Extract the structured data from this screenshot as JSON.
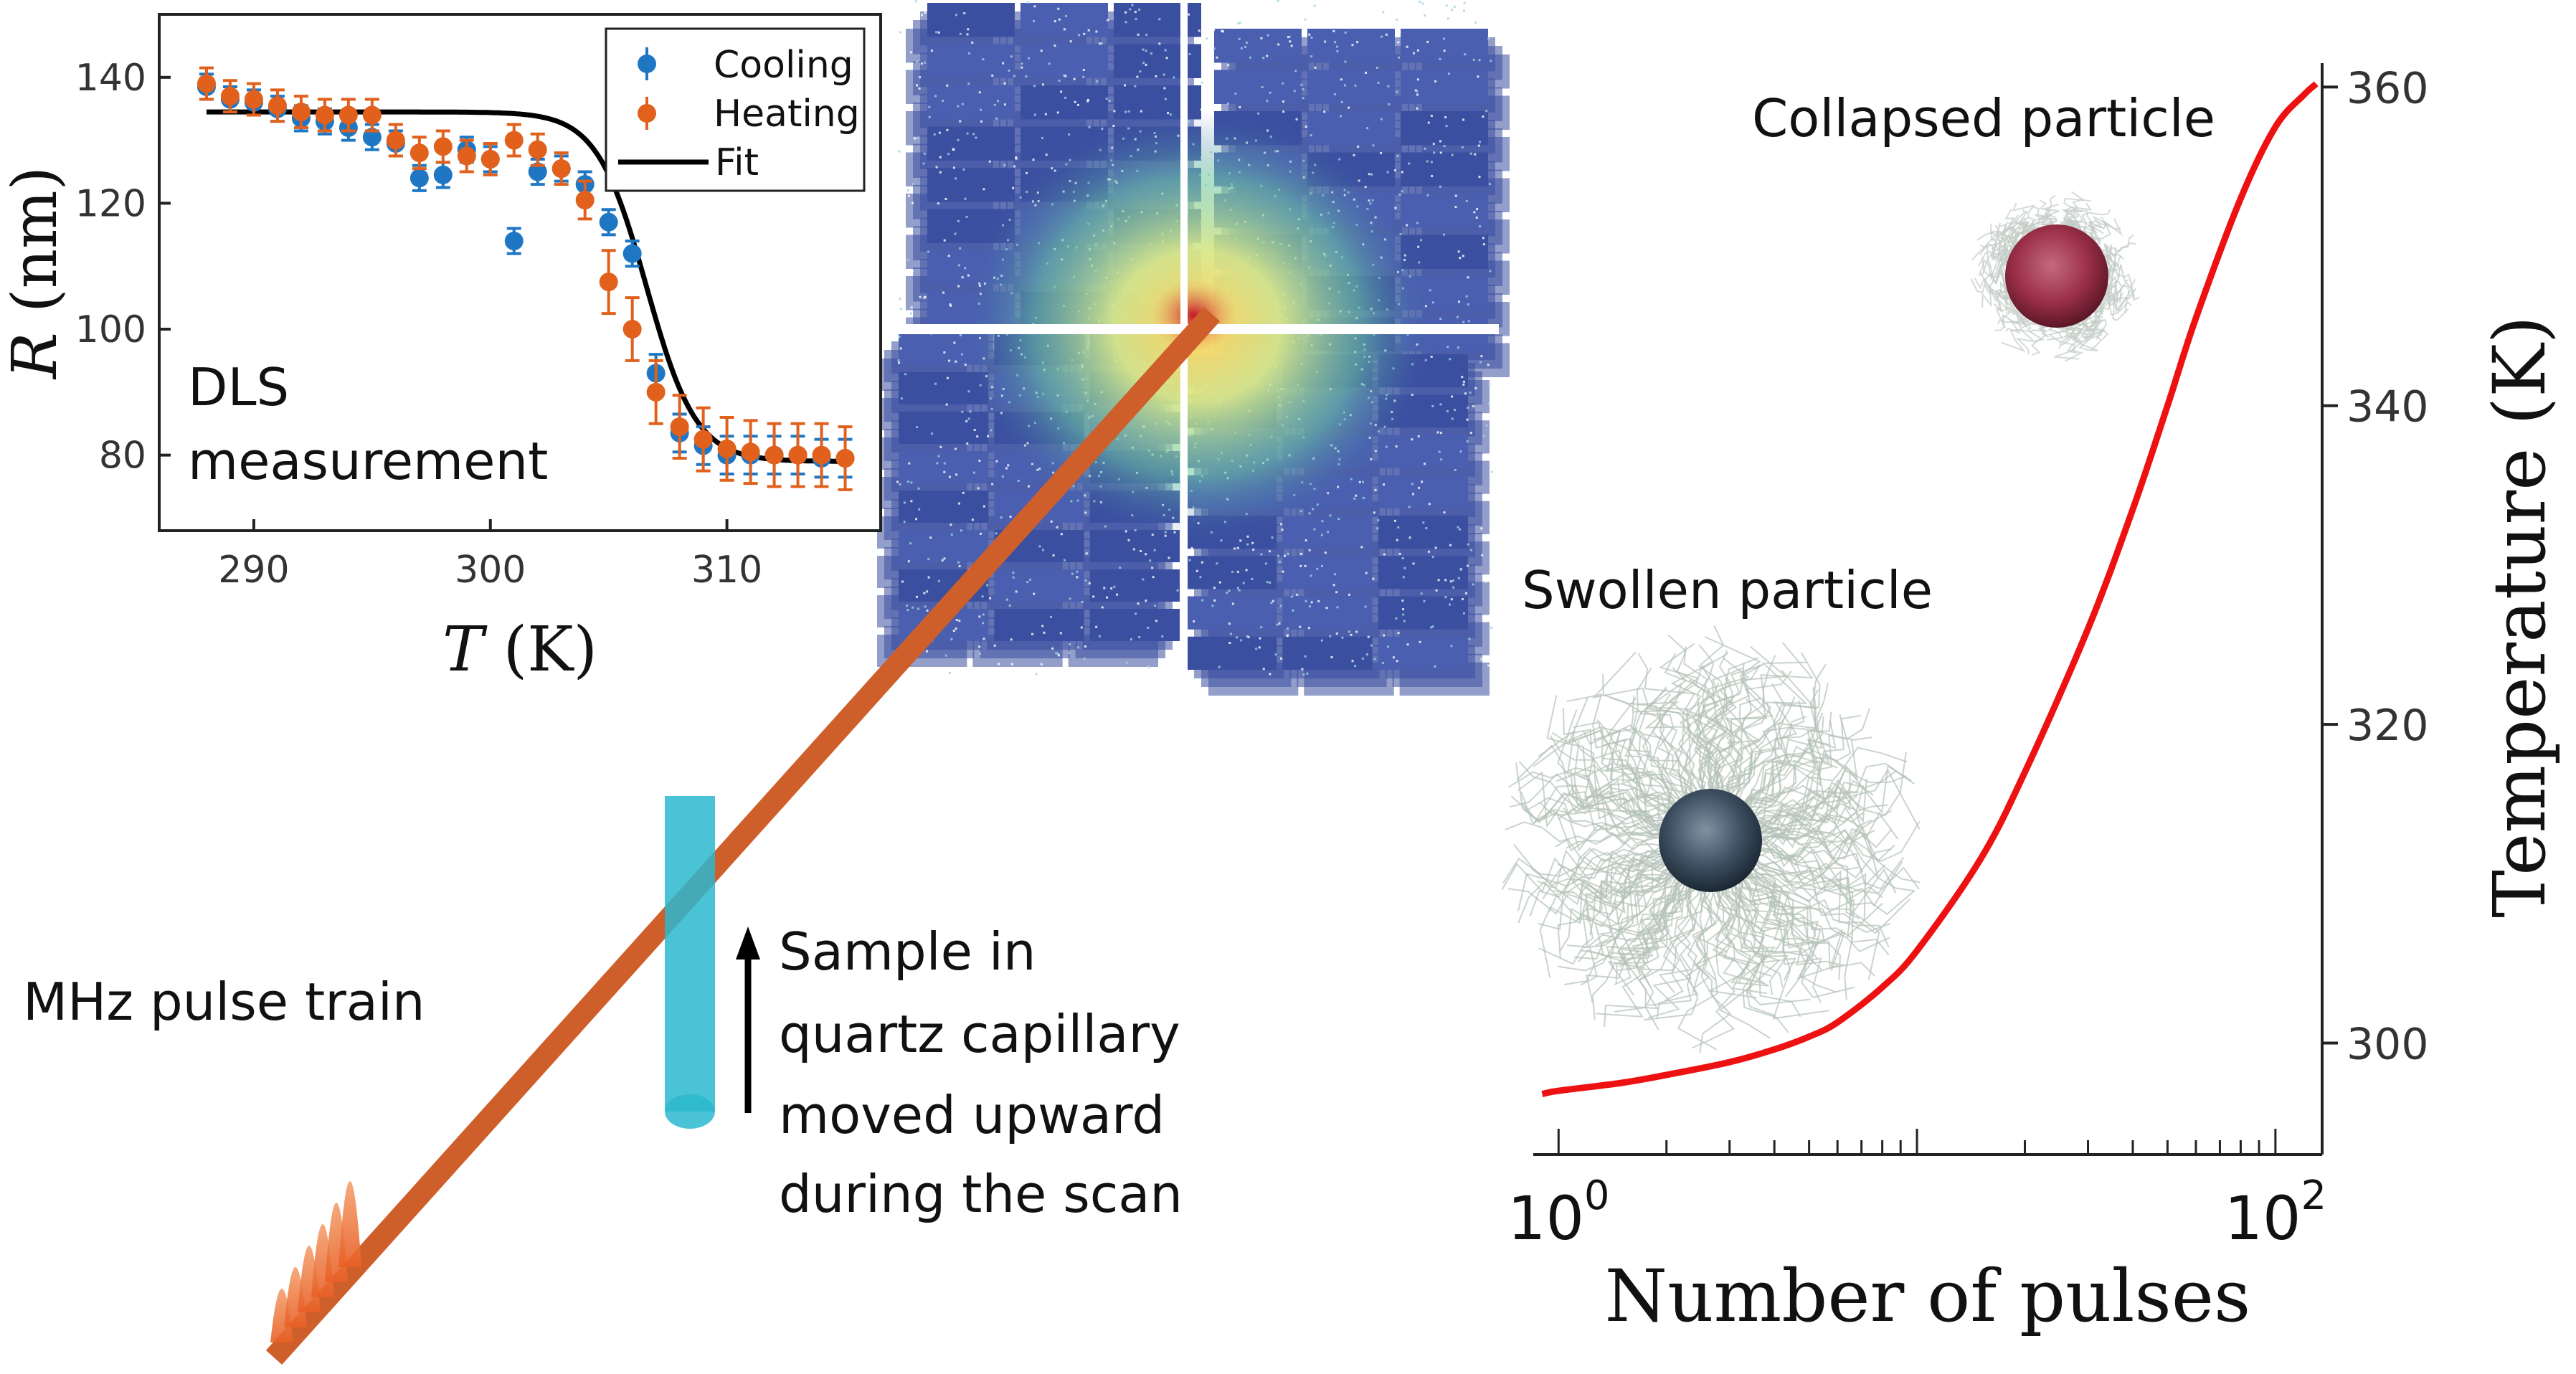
{
  "dls_chart": {
    "type": "scatter",
    "annotation_line1": "DLS",
    "annotation_line2": "measurement",
    "xlabel_var": "T",
    "xlabel_unit": "(K)",
    "ylabel_var": "R",
    "ylabel_unit": "(nm)",
    "xlim": [
      286,
      316.5
    ],
    "ylim": [
      68,
      150
    ],
    "xticks": [
      "290",
      "300",
      "310"
    ],
    "xtick_values": [
      290,
      300,
      310
    ],
    "yticks": [
      "140",
      "120",
      "100",
      "80"
    ],
    "ytick_values": [
      140,
      120,
      100,
      80
    ],
    "legend": [
      "Cooling",
      "Heating",
      "Fit"
    ],
    "legend_position": "top-right",
    "colors": {
      "cooling": "#1f77c4",
      "heating": "#e0601c",
      "fit": "#000000"
    }
  },
  "temp_chart": {
    "type": "line",
    "xlabel": "Number of pulses",
    "ylabel": "Temperature  (K)",
    "x_scale": "log",
    "xlim": [
      0.85,
      135
    ],
    "ylim": [
      293,
      361.5
    ],
    "xtick_labels": [
      {
        "base": "10",
        "exp": "0"
      },
      {
        "base": "10",
        "exp": "2"
      }
    ],
    "xtick_values": [
      1,
      100
    ],
    "yticks": [
      "360",
      "340",
      "320",
      "300"
    ],
    "ytick_values": [
      360,
      340,
      320,
      300
    ],
    "line_color": "#ee1111"
  },
  "chart_data": [
    {
      "type": "scatter",
      "xlabel": "T (K)",
      "ylabel": "R (nm)",
      "xlim": [
        286,
        316.5
      ],
      "ylim": [
        68,
        150
      ],
      "series": [
        {
          "name": "Cooling",
          "x": [
            288,
            289,
            290,
            291,
            292,
            293,
            294,
            295,
            296,
            297,
            298,
            299,
            300,
            301,
            302,
            303,
            304,
            305,
            306,
            307,
            308,
            309,
            310,
            311,
            312,
            313,
            314,
            315
          ],
          "y": [
            138.5,
            136.5,
            136,
            135,
            133.5,
            133,
            132,
            130.5,
            129.5,
            124,
            124.5,
            128.5,
            127,
            114,
            125,
            125.5,
            123,
            117,
            112,
            93,
            83.5,
            81.5,
            80,
            80,
            80,
            80,
            79.5,
            79.5
          ],
          "err": [
            2,
            2,
            2,
            2,
            2,
            2,
            2,
            2,
            2,
            2,
            2,
            2,
            2,
            2,
            2,
            2,
            2,
            2,
            2,
            3,
            3,
            3,
            3,
            3,
            3,
            3,
            3,
            3
          ]
        },
        {
          "name": "Heating",
          "x": [
            288,
            289,
            290,
            291,
            292,
            293,
            294,
            295,
            296,
            297,
            298,
            299,
            300,
            301,
            302,
            303,
            304,
            305,
            306,
            307,
            308,
            309,
            310,
            311,
            312,
            313,
            314,
            315
          ],
          "y": [
            139,
            137,
            136.5,
            135.5,
            134.5,
            134,
            134,
            134,
            130,
            128,
            129,
            127.5,
            127,
            130,
            128.5,
            125.5,
            120.5,
            107.5,
            100,
            90,
            84.5,
            82.5,
            81,
            80.5,
            80,
            80,
            80,
            79.5
          ],
          "err": [
            2.5,
            2.5,
            2.5,
            2.5,
            2.5,
            2.5,
            2.5,
            2.5,
            2.5,
            2.5,
            2.5,
            2.5,
            2.5,
            2.5,
            2.5,
            2.5,
            3,
            5,
            5,
            5,
            5,
            5,
            5,
            5,
            5,
            5,
            5,
            5
          ]
        },
        {
          "name": "Fit",
          "kind": "sigmoid",
          "x_range": [
            288,
            315
          ],
          "upper": 134.5,
          "lower": 79,
          "midpoint": 306.6,
          "width": 1.05
        }
      ]
    },
    {
      "type": "line",
      "xlabel": "Number of pulses",
      "ylabel": "Temperature  (K)",
      "x_scale": "log",
      "xlim": [
        0.85,
        135
      ],
      "ylim": [
        293,
        361.5
      ],
      "series": [
        {
          "x": [
            0.9,
            1,
            1.5,
            2,
            3,
            4,
            5,
            6,
            8,
            10,
            15,
            20,
            30,
            40,
            50,
            60,
            80,
            100,
            120,
            130
          ],
          "y": [
            296.8,
            297.0,
            297.5,
            298.0,
            298.8,
            299.6,
            300.4,
            301.3,
            303.5,
            305.8,
            311.5,
            317.0,
            326.0,
            333.5,
            340.0,
            345.5,
            353.0,
            357.5,
            359.5,
            360.2
          ]
        }
      ]
    }
  ],
  "schematic": {
    "pulse_train_label": "MHz pulse train",
    "sample_label_lines": [
      "Sample in",
      "quartz capillary",
      "moved upward",
      "during the scan"
    ],
    "swollen_label": "Swollen particle",
    "collapsed_label": "Collapsed particle",
    "beam_color": "#cf5f2a",
    "capillary_color": "#2bb8cf"
  }
}
